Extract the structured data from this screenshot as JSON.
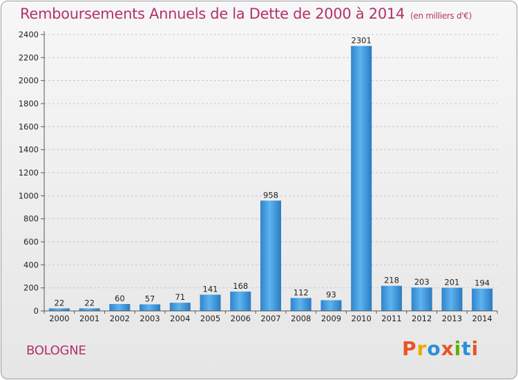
{
  "chart_data": {
    "type": "bar",
    "title": "Remboursements Annuels de la Dette de 2000 à 2014",
    "unit": "(en milliers d'€)",
    "categories": [
      "2000",
      "2001",
      "2002",
      "2003",
      "2004",
      "2005",
      "2006",
      "2007",
      "2008",
      "2009",
      "2010",
      "2011",
      "2012",
      "2013",
      "2014"
    ],
    "values": [
      22,
      22,
      60,
      57,
      71,
      141,
      168,
      958,
      112,
      93,
      2301,
      218,
      203,
      201,
      194
    ],
    "ylim": [
      0,
      2400
    ],
    "yticks": [
      0,
      200,
      400,
      600,
      800,
      1000,
      1200,
      1400,
      1600,
      1800,
      2000,
      2200,
      2400
    ],
    "grid": "horizontal dashed",
    "bar_color": "#3a8fd6",
    "bar_color_light": "#5cb0ee"
  },
  "footer": {
    "commune": "BOLOGNE",
    "logo_text": "Proxiti"
  },
  "colors": {
    "title": "#b3316c",
    "logo": [
      "#e8542a",
      "#f0a800",
      "#2a8fd8",
      "#e8542a",
      "#5bb200",
      "#2a8fd8",
      "#e8542a"
    ]
  }
}
